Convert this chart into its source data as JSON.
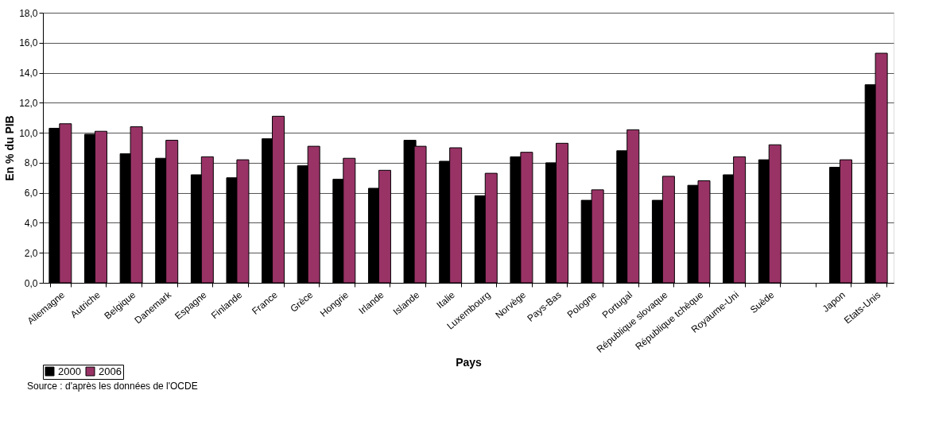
{
  "chart_data": {
    "type": "bar",
    "xlabel": "Pays",
    "ylabel": "En % du PIB",
    "categories": [
      "Allemagne",
      "Autriche",
      "Belgique",
      "Danemark",
      "Espagne",
      "Finlande",
      "France",
      "Grèce",
      "Hongrie",
      "Irlande",
      "Islande",
      "Italie",
      "Luxembourg",
      "Norvège",
      "Pays-Bas",
      "Pologne",
      "Portugal",
      "République slovaque",
      "République tchèque",
      "Royaume-Uni",
      "Suède",
      null,
      "Japon",
      "Etats-Unis"
    ],
    "series": [
      {
        "name": "2000",
        "color": "#000000",
        "values": [
          10.3,
          9.9,
          8.6,
          8.3,
          7.2,
          7.0,
          9.6,
          7.8,
          6.9,
          6.3,
          9.5,
          8.1,
          5.8,
          8.4,
          8.0,
          5.5,
          8.8,
          5.5,
          6.5,
          7.2,
          8.2,
          null,
          7.7,
          13.2
        ]
      },
      {
        "name": "2006",
        "color": "#993366",
        "values": [
          10.6,
          10.1,
          10.4,
          9.5,
          8.4,
          8.2,
          11.1,
          9.1,
          8.3,
          7.5,
          9.1,
          9.0,
          7.3,
          8.7,
          9.3,
          6.2,
          10.2,
          7.1,
          6.8,
          8.4,
          9.2,
          null,
          8.2,
          15.3
        ]
      }
    ],
    "ylim": [
      0,
      18
    ],
    "yticks": [
      {
        "value": 0,
        "label": "0,0"
      },
      {
        "value": 2,
        "label": "2,0"
      },
      {
        "value": 4,
        "label": "4,0"
      },
      {
        "value": 6,
        "label": "6,0"
      },
      {
        "value": 8,
        "label": "8,0"
      },
      {
        "value": 10,
        "label": "10,0"
      },
      {
        "value": 12,
        "label": "12,0"
      },
      {
        "value": 14,
        "label": "14,0"
      },
      {
        "value": 16,
        "label": "16,0"
      },
      {
        "value": 18,
        "label": "18,0"
      }
    ],
    "grid": "y",
    "legend": "bottom",
    "annotations": [
      "Source : d'après les données de l'OCDE"
    ]
  }
}
